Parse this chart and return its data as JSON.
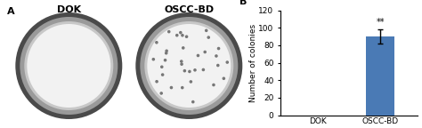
{
  "panel_A_title": "A",
  "panel_B_title": "B",
  "dok_label": "DOK",
  "oscc_label": "OSCC-BD",
  "categories": [
    "DOK",
    "OSCC-BD"
  ],
  "values": [
    0,
    90
  ],
  "oscc_value": 90,
  "oscc_error": 8,
  "bar_color": "#4a7ab5",
  "ylabel": "Number of colonies",
  "ylim": [
    0,
    120
  ],
  "yticks": [
    0,
    20,
    40,
    60,
    80,
    100,
    120
  ],
  "significance": "**",
  "bar_width": 0.45,
  "background_color": "#ffffff",
  "n_dots": 35,
  "dot_seed": 12
}
